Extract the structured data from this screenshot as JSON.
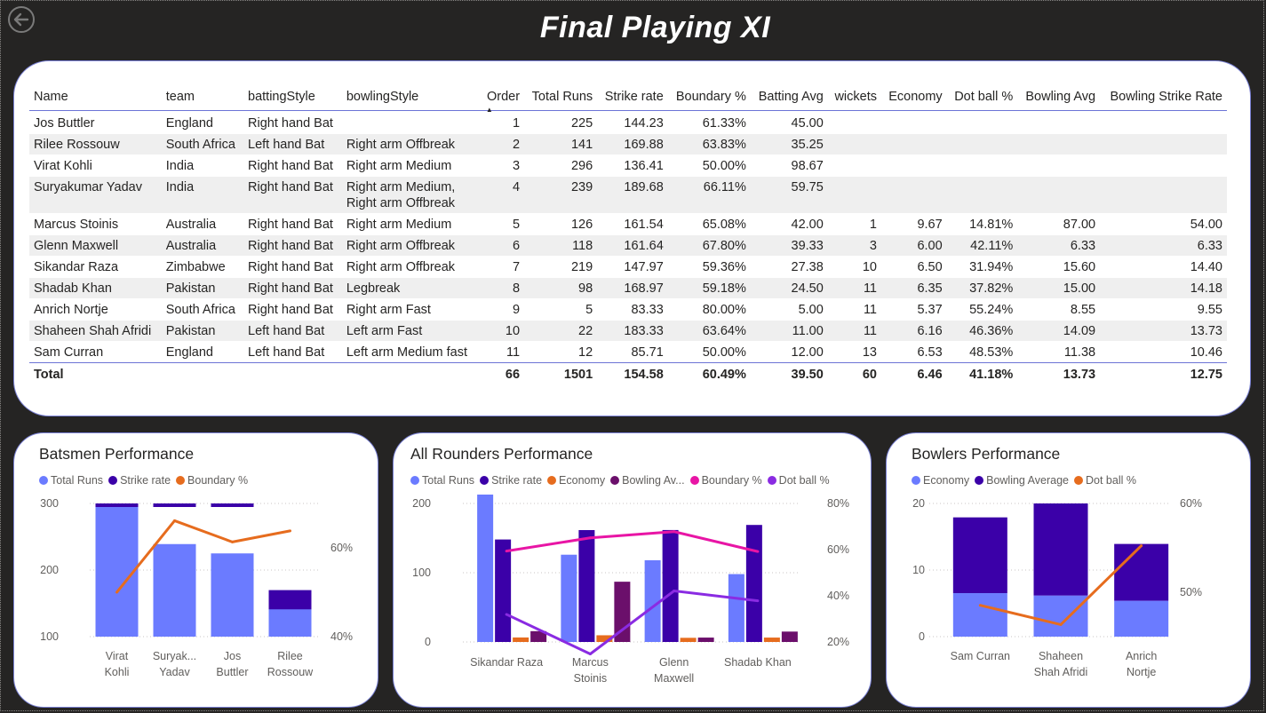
{
  "page": {
    "title": "Final Playing XI"
  },
  "colors": {
    "total_runs": "#6b7bff",
    "strike_rate": "#3b00a8",
    "boundary": "#e66c1e",
    "economy": "#e66c1e",
    "bowling_avg": "#6b0f6b",
    "boundary_ar": "#e815a5",
    "dot_ball_ar": "#8a2be2"
  },
  "icons": {
    "back": "back-arrow-circle-icon"
  },
  "table": {
    "columns": [
      "Name",
      "team",
      "battingStyle",
      "bowlingStyle",
      "Order",
      "Total Runs",
      "Strike rate",
      "Boundary %",
      "Batting Avg",
      "wickets",
      "Economy",
      "Dot ball %",
      "Bowling Avg",
      "Bowling Strike Rate"
    ],
    "sorted_column": "Order",
    "rows": [
      [
        "Jos Buttler",
        "England",
        "Right hand Bat",
        "",
        "1",
        "225",
        "144.23",
        "61.33%",
        "45.00",
        "",
        "",
        "",
        "",
        ""
      ],
      [
        "Rilee Rossouw",
        "South Africa",
        "Left hand Bat",
        "Right arm Offbreak",
        "2",
        "141",
        "169.88",
        "63.83%",
        "35.25",
        "",
        "",
        "",
        "",
        ""
      ],
      [
        "Virat Kohli",
        "India",
        "Right hand Bat",
        "Right arm Medium",
        "3",
        "296",
        "136.41",
        "50.00%",
        "98.67",
        "",
        "",
        "",
        "",
        ""
      ],
      [
        "Suryakumar Yadav",
        "India",
        "Right hand Bat",
        "Right arm Medium, Right arm Offbreak",
        "4",
        "239",
        "189.68",
        "66.11%",
        "59.75",
        "",
        "",
        "",
        "",
        ""
      ],
      [
        "Marcus Stoinis",
        "Australia",
        "Right hand Bat",
        "Right arm Medium",
        "5",
        "126",
        "161.54",
        "65.08%",
        "42.00",
        "1",
        "9.67",
        "14.81%",
        "87.00",
        "54.00"
      ],
      [
        "Glenn Maxwell",
        "Australia",
        "Right hand Bat",
        "Right arm Offbreak",
        "6",
        "118",
        "161.64",
        "67.80%",
        "39.33",
        "3",
        "6.00",
        "42.11%",
        "6.33",
        "6.33"
      ],
      [
        "Sikandar Raza",
        "Zimbabwe",
        "Right hand Bat",
        "Right arm Offbreak",
        "7",
        "219",
        "147.97",
        "59.36%",
        "27.38",
        "10",
        "6.50",
        "31.94%",
        "15.60",
        "14.40"
      ],
      [
        "Shadab Khan",
        "Pakistan",
        "Right hand Bat",
        "Legbreak",
        "8",
        "98",
        "168.97",
        "59.18%",
        "24.50",
        "11",
        "6.35",
        "37.82%",
        "15.00",
        "14.18"
      ],
      [
        "Anrich Nortje",
        "South Africa",
        "Right hand Bat",
        "Right arm Fast",
        "9",
        "5",
        "83.33",
        "80.00%",
        "5.00",
        "11",
        "5.37",
        "55.24%",
        "8.55",
        "9.55"
      ],
      [
        "Shaheen Shah Afridi",
        "Pakistan",
        "Left hand Bat",
        "Left arm Fast",
        "10",
        "22",
        "183.33",
        "63.64%",
        "11.00",
        "11",
        "6.16",
        "46.36%",
        "14.09",
        "13.73"
      ],
      [
        "Sam Curran",
        "England",
        "Left hand Bat",
        "Left arm Medium fast",
        "11",
        "12",
        "85.71",
        "50.00%",
        "12.00",
        "13",
        "6.53",
        "48.53%",
        "11.38",
        "10.46"
      ]
    ],
    "total": [
      "Total",
      "",
      "",
      "",
      "66",
      "1501",
      "154.58",
      "60.49%",
      "39.50",
      "60",
      "6.46",
      "41.18%",
      "13.73",
      "12.75"
    ]
  },
  "chart_data": [
    {
      "type": "bar",
      "title": "Batsmen Performance",
      "categories": [
        "Virat Kohli",
        "Suryak... Yadav",
        "Jos Buttler",
        "Rilee Rossouw"
      ],
      "series": [
        {
          "name": "Total Runs",
          "type": "bar",
          "axis": "left",
          "values": [
            296,
            239,
            225,
            141
          ]
        },
        {
          "name": "Strike rate",
          "type": "bar",
          "axis": "left",
          "values": [
            136.41,
            189.68,
            144.23,
            169.88
          ]
        },
        {
          "name": "Boundary %",
          "type": "line",
          "axis": "right",
          "values": [
            50.0,
            66.11,
            61.33,
            63.83
          ]
        }
      ],
      "y_left": {
        "ticks": [
          "100",
          "200",
          "300"
        ],
        "range": [
          100,
          300
        ]
      },
      "y_right": {
        "ticks": [
          "40%",
          "60%"
        ],
        "range": [
          40,
          70
        ]
      },
      "legend": "top-left"
    },
    {
      "type": "bar",
      "title": "All Rounders Performance",
      "categories": [
        "Sikandar Raza",
        "Marcus Stoinis",
        "Glenn Maxwell",
        "Shadab Khan"
      ],
      "series": [
        {
          "name": "Total Runs",
          "type": "bar",
          "axis": "left",
          "values": [
            219,
            126,
            118,
            98
          ]
        },
        {
          "name": "Strike rate",
          "type": "bar",
          "axis": "left",
          "values": [
            147.97,
            161.54,
            161.64,
            168.97
          ]
        },
        {
          "name": "Economy",
          "type": "bar",
          "axis": "left",
          "values": [
            6.5,
            9.67,
            6.0,
            6.35
          ]
        },
        {
          "name": "Bowling Av...",
          "type": "bar",
          "axis": "left",
          "values": [
            15.6,
            87.0,
            6.33,
            15.0
          ]
        },
        {
          "name": "Boundary %",
          "type": "line",
          "axis": "right",
          "values": [
            59.36,
            65.08,
            67.8,
            59.18
          ]
        },
        {
          "name": "Dot ball %",
          "type": "line",
          "axis": "right",
          "values": [
            31.94,
            14.81,
            42.11,
            37.82
          ]
        }
      ],
      "y_left": {
        "ticks": [
          "0",
          "100",
          "200"
        ],
        "range": [
          0,
          200
        ]
      },
      "y_right": {
        "ticks": [
          "20%",
          "40%",
          "60%",
          "80%"
        ],
        "range": [
          20,
          80
        ]
      },
      "legend": "top-left"
    },
    {
      "type": "bar",
      "title": "Bowlers Performance",
      "categories": [
        "Sam Curran",
        "Shaheen Shah Afridi",
        "Anrich Nortje"
      ],
      "series": [
        {
          "name": "Economy",
          "type": "bar",
          "axis": "left",
          "values": [
            6.53,
            6.16,
            5.37
          ]
        },
        {
          "name": "Bowling Average",
          "type": "bar",
          "axis": "left",
          "values": [
            11.38,
            14.09,
            8.55
          ]
        },
        {
          "name": "Dot ball %",
          "type": "line",
          "axis": "right",
          "values": [
            48.53,
            46.36,
            55.24
          ]
        }
      ],
      "y_left": {
        "ticks": [
          "0",
          "10",
          "20"
        ],
        "range": [
          0,
          20
        ]
      },
      "y_right": {
        "ticks": [
          "50%",
          "60%"
        ],
        "range": [
          45,
          60
        ]
      },
      "legend": "top-left"
    }
  ]
}
